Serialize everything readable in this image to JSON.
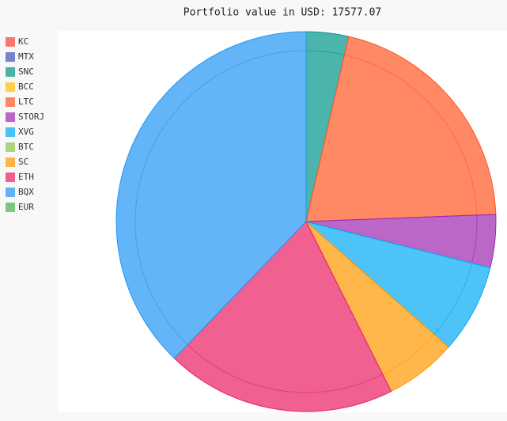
{
  "chart_data": {
    "type": "pie",
    "title": "Portfolio value in USD: 17577.07",
    "series": [
      {
        "name": "KC",
        "color": "#F44336",
        "values": [
          0
        ]
      },
      {
        "name": "MTX",
        "color": "#3F51B5",
        "values": [
          0
        ]
      },
      {
        "name": "SNC",
        "color": "#009688",
        "values": [
          3.6
        ]
      },
      {
        "name": "BCC",
        "color": "#FFC107",
        "values": [
          0
        ]
      },
      {
        "name": "LTC",
        "color": "#FF5722",
        "values": [
          20.8
        ]
      },
      {
        "name": "STORJ",
        "color": "#9C27B0",
        "values": [
          4.5
        ]
      },
      {
        "name": "XVG",
        "color": "#03A9F4",
        "values": [
          7.6
        ]
      },
      {
        "name": "BTC",
        "color": "#8BC34A",
        "values": [
          0
        ]
      },
      {
        "name": "SC",
        "color": "#FF9800",
        "values": [
          6.1
        ]
      },
      {
        "name": "ETH",
        "color": "#E91E63",
        "values": [
          19.6
        ]
      },
      {
        "name": "BQX",
        "color": "#2196F3",
        "values": [
          37.8
        ]
      },
      {
        "name": "EUR",
        "color": "#4CAF50",
        "values": [
          0
        ]
      }
    ]
  }
}
